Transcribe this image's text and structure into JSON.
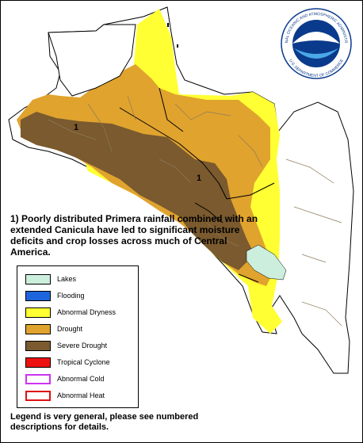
{
  "note": {
    "text": "1) Poorly distributed Primera rainfall combined with an extended Canicula have led to significant moisture deficits and crop losses across much of Central America."
  },
  "map_labels": [
    {
      "id": "area-1-west",
      "text": "1"
    },
    {
      "id": "area-1-east",
      "text": "1"
    }
  ],
  "legend": {
    "items": [
      {
        "label": "Lakes",
        "color": "#cceedd",
        "style": "fill"
      },
      {
        "label": "Flooding",
        "color": "#1e64dc",
        "style": "fill"
      },
      {
        "label": "Abnormal Dryness",
        "color": "#ffff33",
        "style": "fill"
      },
      {
        "label": "Drought",
        "color": "#e0a32e",
        "style": "fill"
      },
      {
        "label": "Severe Drought",
        "color": "#7a5a2e",
        "style": "fill"
      },
      {
        "label": "Tropical Cyclone",
        "color": "#ee1111",
        "style": "fill"
      },
      {
        "label": "Abnormal Cold",
        "color": "#cc33ee",
        "style": "outline"
      },
      {
        "label": "Abnormal Heat",
        "color": "#dd1111",
        "style": "outline"
      }
    ]
  },
  "footer": {
    "text": "Legend is very general, please see numbered descriptions for details."
  },
  "logo": {
    "center_text": "NOAA",
    "ring_top": "NATIONAL OCEANIC AND ATMOSPHERIC ADMINISTRATION",
    "ring_bottom": "U.S. DEPARTMENT OF COMMERCE",
    "colors": {
      "blue": "#0a3a8c",
      "light_blue": "#4aa8e6"
    }
  },
  "colors": {
    "land": "#ffffff",
    "border": "#000000",
    "admin": "#8c7a5a"
  }
}
